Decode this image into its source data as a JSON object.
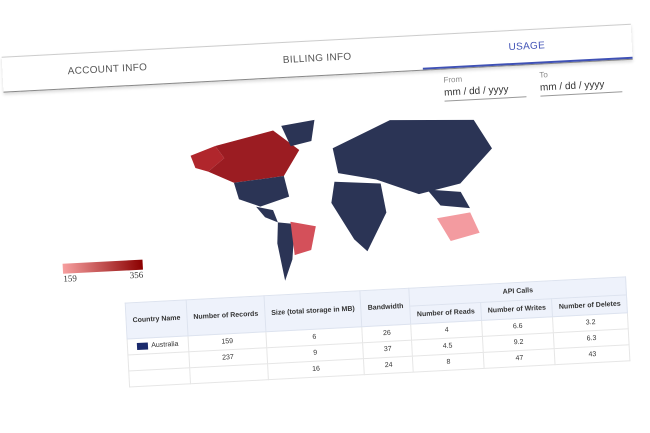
{
  "tabs": [
    {
      "label": "ACCOUNT INFO",
      "active": false
    },
    {
      "label": "BILLING INFO",
      "active": false
    },
    {
      "label": "USAGE",
      "active": true
    }
  ],
  "date_filter": {
    "from_label": "From",
    "from_placeholder": "mm / dd / yyyy",
    "to_label": "To",
    "to_placeholder": "mm / dd / yyyy"
  },
  "map": {
    "base_color": "#2b3455",
    "highlight_colors": {
      "Canada": "#9b1c22",
      "United States (Alaska)": "#b0262c",
      "Brazil": "#d4505a",
      "Australia": "#f39ba0"
    }
  },
  "legend": {
    "min": "159",
    "max": "356",
    "min_color": "#f7a0a0",
    "max_color": "#8b0000"
  },
  "table": {
    "headers": {
      "country": "Country Name",
      "records": "Number of Records",
      "size": "Size (total storage in MB)",
      "bandwidth": "Bandwidth",
      "api_group": "API Calls",
      "reads": "Number of Reads",
      "writes": "Number of Writes",
      "deletes": "Number of Deletes"
    },
    "rows": [
      {
        "country": "Australia",
        "records": "159",
        "size": "6",
        "bandwidth": "26",
        "reads": "4",
        "writes": "6.6",
        "deletes": "3.2"
      },
      {
        "country": "",
        "records": "237",
        "size": "9",
        "bandwidth": "37",
        "reads": "4.5",
        "writes": "9.2",
        "deletes": "6.3"
      },
      {
        "country": "",
        "records": "",
        "size": "16",
        "bandwidth": "24",
        "reads": "8",
        "writes": "47",
        "deletes": "43"
      }
    ]
  }
}
